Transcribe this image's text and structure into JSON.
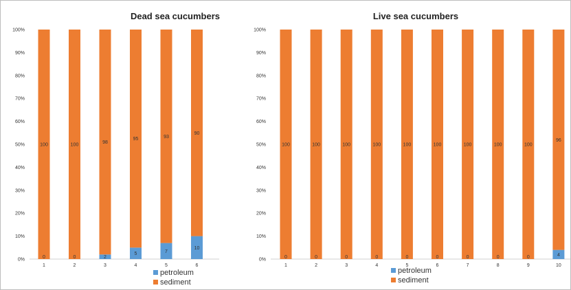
{
  "colors": {
    "petroleum": "#5b9bd5",
    "sediment": "#ed7d31"
  },
  "chart_data": [
    {
      "type": "bar",
      "stacked": true,
      "title": "Dead sea cucumbers",
      "categories": [
        "1",
        "2",
        "3",
        "4",
        "5",
        "6"
      ],
      "y_ticks": [
        "0%",
        "10%",
        "20%",
        "30%",
        "40%",
        "50%",
        "60%",
        "70%",
        "80%",
        "90%",
        "100%"
      ],
      "ylim": [
        0,
        100
      ],
      "series": [
        {
          "name": "petroleum",
          "values": [
            0,
            0,
            2,
            5,
            7,
            10
          ]
        },
        {
          "name": "sediment",
          "values": [
            100,
            100,
            98,
            95,
            93,
            90
          ]
        }
      ],
      "legend": "bottom"
    },
    {
      "type": "bar",
      "stacked": true,
      "title": "Live sea cucumbers",
      "categories": [
        "1",
        "2",
        "3",
        "4",
        "5",
        "6",
        "7",
        "8",
        "9",
        "10"
      ],
      "y_ticks": [
        "0%",
        "10%",
        "20%",
        "30%",
        "40%",
        "50%",
        "60%",
        "70%",
        "80%",
        "90%",
        "100%"
      ],
      "ylim": [
        0,
        100
      ],
      "series": [
        {
          "name": "petroleum",
          "values": [
            0,
            0,
            0,
            0,
            0,
            0,
            0,
            0,
            0,
            4
          ]
        },
        {
          "name": "sediment",
          "values": [
            100,
            100,
            100,
            100,
            100,
            100,
            100,
            100,
            100,
            96
          ]
        }
      ],
      "legend": "bottom"
    }
  ]
}
